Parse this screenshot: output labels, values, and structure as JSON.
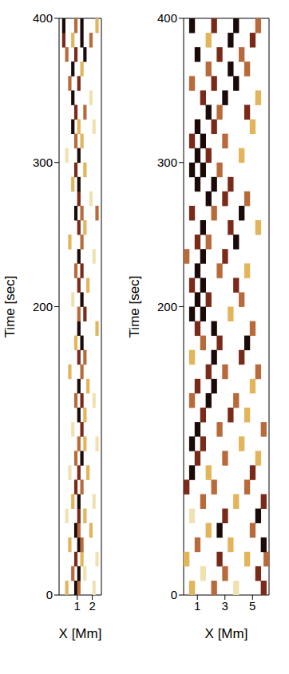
{
  "chart_data": [
    {
      "type": "heatmap",
      "x_label": "X [Mm]",
      "y_label": "Time [sec]",
      "xlim": [
        -0.2,
        2.6
      ],
      "xticks": [
        1,
        2
      ],
      "ylim": [
        0,
        400
      ],
      "yticks": [
        0,
        200,
        300,
        400
      ],
      "dx": 0.2,
      "dt": 10,
      "zlim": [
        0,
        1
      ],
      "colors": [
        "#ffffff",
        "#f0e2b0",
        "#e3b45a",
        "#b86a3a",
        "#7a2a18",
        "#1a0a08"
      ],
      "cells": [
        [
          0.3,
          5,
          0.4
        ],
        [
          0.9,
          5,
          1
        ],
        [
          1.1,
          5,
          0.6
        ],
        [
          2.1,
          5,
          0.2
        ],
        [
          0.7,
          15,
          0.6
        ],
        [
          1.1,
          15,
          1
        ],
        [
          1.5,
          15,
          0.2
        ],
        [
          0.9,
          25,
          0.8
        ],
        [
          1.3,
          25,
          0.4
        ],
        [
          2.3,
          25,
          0.2
        ],
        [
          0.5,
          35,
          0.4
        ],
        [
          1.1,
          35,
          1
        ],
        [
          1.3,
          35,
          0.6
        ],
        [
          0.9,
          45,
          1
        ],
        [
          1.1,
          45,
          0.6
        ],
        [
          1.9,
          45,
          0.4
        ],
        [
          0.3,
          55,
          0.2
        ],
        [
          1.1,
          55,
          0.8
        ],
        [
          1.5,
          55,
          0.4
        ],
        [
          0.7,
          65,
          0.4
        ],
        [
          1.1,
          65,
          1
        ],
        [
          2.1,
          65,
          0.2
        ],
        [
          0.9,
          75,
          0.8
        ],
        [
          1.3,
          75,
          0.6
        ],
        [
          0.5,
          85,
          0.2
        ],
        [
          1.1,
          85,
          0.8
        ],
        [
          1.7,
          85,
          0.4
        ],
        [
          0.9,
          95,
          0.6
        ],
        [
          1.3,
          95,
          1
        ],
        [
          1.1,
          105,
          0.6
        ],
        [
          1.5,
          105,
          0.4
        ],
        [
          2.3,
          105,
          0.2
        ],
        [
          0.7,
          115,
          0.2
        ],
        [
          1.3,
          115,
          0.8
        ],
        [
          1.1,
          125,
          1
        ],
        [
          1.5,
          125,
          0.4
        ],
        [
          0.9,
          135,
          0.6
        ],
        [
          1.3,
          135,
          0.8
        ],
        [
          2.1,
          135,
          0.2
        ],
        [
          1.1,
          145,
          1
        ],
        [
          1.7,
          145,
          0.4
        ],
        [
          0.5,
          155,
          0.4
        ],
        [
          1.3,
          155,
          0.6
        ],
        [
          1.1,
          165,
          0.8
        ],
        [
          1.5,
          165,
          0.6
        ],
        [
          0.9,
          175,
          0.4
        ],
        [
          1.3,
          175,
          1
        ],
        [
          1.1,
          185,
          1
        ],
        [
          2.3,
          185,
          0.4
        ],
        [
          1.1,
          195,
          0.6
        ],
        [
          1.5,
          195,
          0.8
        ],
        [
          0.7,
          205,
          0.2
        ],
        [
          1.3,
          205,
          1
        ],
        [
          1.1,
          215,
          0.8
        ],
        [
          1.7,
          215,
          0.4
        ],
        [
          0.9,
          225,
          0.6
        ],
        [
          1.3,
          225,
          0.8
        ],
        [
          1.1,
          235,
          1
        ],
        [
          2.1,
          235,
          0.2
        ],
        [
          0.5,
          245,
          0.4
        ],
        [
          1.3,
          245,
          0.6
        ],
        [
          1.1,
          255,
          0.8
        ],
        [
          1.5,
          255,
          0.4
        ],
        [
          0.9,
          265,
          1
        ],
        [
          1.3,
          265,
          0.6
        ],
        [
          2.3,
          265,
          0.6
        ],
        [
          1.1,
          275,
          0.8
        ],
        [
          1.9,
          275,
          0.2
        ],
        [
          0.7,
          285,
          0.4
        ],
        [
          1.1,
          285,
          1
        ],
        [
          0.9,
          295,
          0.8
        ],
        [
          1.5,
          295,
          0.4
        ],
        [
          1.1,
          305,
          1
        ],
        [
          0.3,
          305,
          0.2
        ],
        [
          0.9,
          315,
          0.6
        ],
        [
          1.3,
          315,
          0.4
        ],
        [
          0.7,
          325,
          1
        ],
        [
          1.1,
          325,
          0.4
        ],
        [
          2.1,
          325,
          0.2
        ],
        [
          0.9,
          335,
          0.8
        ],
        [
          1.5,
          335,
          0.6
        ],
        [
          0.7,
          345,
          1
        ],
        [
          1.9,
          345,
          0.2
        ],
        [
          0.5,
          355,
          0.6
        ],
        [
          1.1,
          355,
          0.8
        ],
        [
          0.7,
          365,
          1
        ],
        [
          1.3,
          365,
          0.4
        ],
        [
          0.3,
          375,
          0.6
        ],
        [
          0.9,
          375,
          0.8
        ],
        [
          1.5,
          375,
          1
        ],
        [
          0.1,
          385,
          0.8
        ],
        [
          0.7,
          385,
          0.4
        ],
        [
          1.3,
          385,
          1
        ],
        [
          1.9,
          385,
          0.6
        ],
        [
          0.1,
          395,
          1
        ],
        [
          0.9,
          395,
          0.6
        ],
        [
          1.3,
          395,
          1
        ],
        [
          2.3,
          395,
          0.4
        ]
      ]
    },
    {
      "type": "heatmap",
      "x_label": "X [Mm]",
      "y_label": "Time [sec]",
      "xlim": [
        0,
        6.2
      ],
      "xticks": [
        1,
        3,
        5
      ],
      "ylim": [
        0,
        400
      ],
      "yticks": [
        0,
        200,
        300,
        400
      ],
      "dx": 0.4,
      "dt": 10,
      "zlim": [
        0,
        1
      ],
      "colors": [
        "#ffffff",
        "#f0e2b0",
        "#e3b45a",
        "#b86a3a",
        "#7a2a18",
        "#1a0a08"
      ],
      "cells": [
        [
          0.6,
          5,
          0.4
        ],
        [
          2.2,
          5,
          0.6
        ],
        [
          3.8,
          5,
          0.2
        ],
        [
          5.8,
          5,
          0.8
        ],
        [
          1.4,
          15,
          0.2
        ],
        [
          3.0,
          15,
          0.6
        ],
        [
          5.4,
          15,
          0.8
        ],
        [
          0.2,
          25,
          0.4
        ],
        [
          2.6,
          25,
          0.8
        ],
        [
          4.6,
          25,
          0.4
        ],
        [
          6.0,
          25,
          0.6
        ],
        [
          1.0,
          35,
          0.6
        ],
        [
          3.4,
          35,
          0.4
        ],
        [
          5.8,
          35,
          1
        ],
        [
          1.8,
          45,
          0.4
        ],
        [
          2.6,
          45,
          1
        ],
        [
          5.0,
          45,
          0.6
        ],
        [
          0.6,
          55,
          0.2
        ],
        [
          3.0,
          55,
          0.8
        ],
        [
          5.4,
          55,
          1
        ],
        [
          1.4,
          65,
          0.6
        ],
        [
          3.8,
          65,
          0.4
        ],
        [
          5.8,
          65,
          0.8
        ],
        [
          0.2,
          75,
          0.8
        ],
        [
          2.2,
          75,
          0.6
        ],
        [
          4.6,
          75,
          0.6
        ],
        [
          0.6,
          85,
          1
        ],
        [
          1.8,
          85,
          0.4
        ],
        [
          5.0,
          85,
          0.8
        ],
        [
          1.0,
          95,
          0.8
        ],
        [
          3.0,
          95,
          0.6
        ],
        [
          5.4,
          95,
          0.4
        ],
        [
          0.6,
          105,
          1
        ],
        [
          1.4,
          105,
          0.8
        ],
        [
          4.2,
          105,
          0.4
        ],
        [
          1.0,
          115,
          1
        ],
        [
          2.6,
          115,
          0.6
        ],
        [
          5.8,
          115,
          0.6
        ],
        [
          1.4,
          125,
          0.8
        ],
        [
          3.4,
          125,
          0.8
        ],
        [
          4.6,
          125,
          0.4
        ],
        [
          0.6,
          135,
          0.6
        ],
        [
          1.8,
          135,
          1
        ],
        [
          3.8,
          135,
          0.6
        ],
        [
          1.0,
          145,
          0.8
        ],
        [
          2.2,
          145,
          1
        ],
        [
          5.0,
          145,
          0.4
        ],
        [
          1.8,
          155,
          0.8
        ],
        [
          3.0,
          155,
          0.6
        ],
        [
          5.4,
          155,
          0.6
        ],
        [
          0.6,
          165,
          0.4
        ],
        [
          2.2,
          165,
          1
        ],
        [
          4.2,
          165,
          0.8
        ],
        [
          1.4,
          175,
          0.6
        ],
        [
          2.6,
          175,
          0.8
        ],
        [
          4.6,
          175,
          1
        ],
        [
          1.0,
          185,
          0.8
        ],
        [
          2.2,
          185,
          1
        ],
        [
          5.0,
          185,
          0.6
        ],
        [
          0.6,
          195,
          1
        ],
        [
          1.4,
          195,
          1
        ],
        [
          3.4,
          195,
          0.4
        ],
        [
          1.0,
          205,
          1
        ],
        [
          1.8,
          205,
          0.8
        ],
        [
          4.2,
          205,
          0.6
        ],
        [
          0.6,
          215,
          0.8
        ],
        [
          1.4,
          215,
          1
        ],
        [
          3.8,
          215,
          0.8
        ],
        [
          1.0,
          225,
          1
        ],
        [
          2.6,
          225,
          0.6
        ],
        [
          4.6,
          225,
          0.4
        ],
        [
          0.2,
          235,
          0.6
        ],
        [
          1.4,
          235,
          1
        ],
        [
          3.0,
          235,
          0.8
        ],
        [
          1.0,
          245,
          0.8
        ],
        [
          1.8,
          245,
          0.6
        ],
        [
          3.8,
          245,
          1
        ],
        [
          1.4,
          255,
          1
        ],
        [
          3.4,
          255,
          0.8
        ],
        [
          5.4,
          255,
          0.4
        ],
        [
          0.6,
          265,
          0.8
        ],
        [
          2.2,
          265,
          0.6
        ],
        [
          4.2,
          265,
          1
        ],
        [
          1.8,
          275,
          1
        ],
        [
          3.0,
          275,
          0.8
        ],
        [
          4.6,
          275,
          0.6
        ],
        [
          1.0,
          285,
          1
        ],
        [
          2.2,
          285,
          1
        ],
        [
          3.4,
          285,
          0.8
        ],
        [
          0.6,
          295,
          1
        ],
        [
          1.4,
          295,
          1
        ],
        [
          2.6,
          295,
          0.6
        ],
        [
          1.0,
          305,
          1
        ],
        [
          1.8,
          305,
          0.8
        ],
        [
          4.2,
          305,
          0.4
        ],
        [
          0.6,
          315,
          0.8
        ],
        [
          1.4,
          315,
          1
        ],
        [
          3.0,
          315,
          0.6
        ],
        [
          1.0,
          325,
          1
        ],
        [
          2.2,
          325,
          0.8
        ],
        [
          5.0,
          325,
          0.4
        ],
        [
          1.8,
          335,
          1
        ],
        [
          2.6,
          335,
          0.6
        ],
        [
          4.6,
          335,
          0.8
        ],
        [
          1.4,
          345,
          0.8
        ],
        [
          3.0,
          345,
          1
        ],
        [
          5.4,
          345,
          0.4
        ],
        [
          0.6,
          355,
          0.6
        ],
        [
          2.2,
          355,
          0.8
        ],
        [
          3.8,
          355,
          1
        ],
        [
          1.8,
          365,
          0.6
        ],
        [
          3.4,
          365,
          1
        ],
        [
          4.6,
          365,
          0.6
        ],
        [
          1.0,
          375,
          1
        ],
        [
          2.6,
          375,
          0.8
        ],
        [
          4.2,
          375,
          0.6
        ],
        [
          1.8,
          385,
          0.4
        ],
        [
          3.4,
          385,
          1
        ],
        [
          5.0,
          385,
          0.8
        ],
        [
          0.6,
          395,
          1
        ],
        [
          2.2,
          395,
          0.8
        ],
        [
          3.8,
          395,
          1
        ],
        [
          5.4,
          395,
          0.6
        ]
      ]
    }
  ]
}
